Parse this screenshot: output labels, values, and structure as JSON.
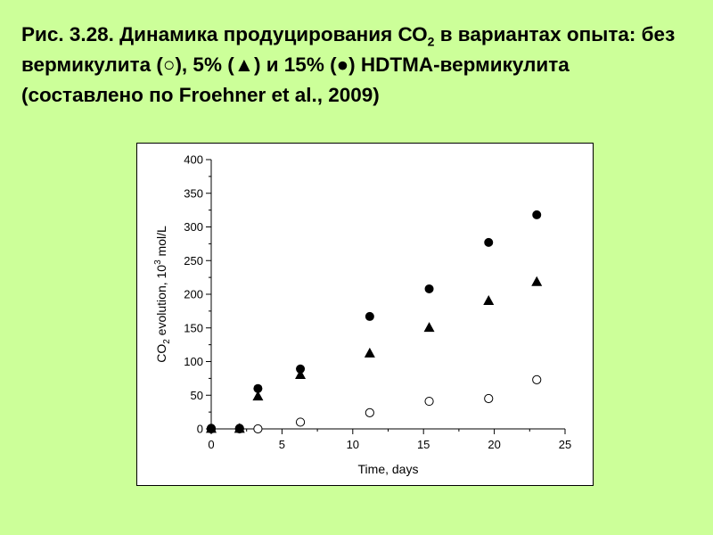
{
  "caption": {
    "part1": "Рис. 3.28. Динамика продуцирования СО",
    "sub": "2",
    "part2": " в вариантах опыта: без вермикулита (○), 5% (▲) и 15% (●) HDTMA-вермикулита (составлено по Froehner et al., 2009)"
  },
  "chart_data": {
    "type": "scatter",
    "xlabel": "Time, days",
    "ylabel": {
      "prefix": "CO",
      "sub": "2",
      "middle": " evolution, 10",
      "sup": "3",
      "suffix": " mol/L"
    },
    "xlim": [
      0,
      25
    ],
    "ylim": [
      0,
      400
    ],
    "xticks": [
      0,
      5,
      10,
      15,
      20,
      25
    ],
    "yticks": [
      0,
      50,
      100,
      150,
      200,
      250,
      300,
      350,
      400
    ],
    "grid": false,
    "colors": {
      "marker": "#000000",
      "background": "#ccff99"
    },
    "series": [
      {
        "marker": "open-circle",
        "x": [
          0,
          2,
          3.3,
          6.3,
          11.2,
          15.4,
          19.6,
          23.0
        ],
        "y": [
          0,
          0,
          0,
          10,
          24,
          41,
          45,
          73
        ]
      },
      {
        "marker": "filled-triangle",
        "x": [
          0,
          2,
          3.3,
          6.3,
          11.2,
          15.4,
          19.6,
          23.0
        ],
        "y": [
          0,
          0,
          48,
          80,
          112,
          150,
          190,
          218
        ]
      },
      {
        "marker": "filled-circle",
        "x": [
          0,
          2,
          3.3,
          6.3,
          11.2,
          15.4,
          19.6,
          23.0
        ],
        "y": [
          1,
          1,
          60,
          89,
          167,
          208,
          277,
          318
        ]
      }
    ]
  }
}
